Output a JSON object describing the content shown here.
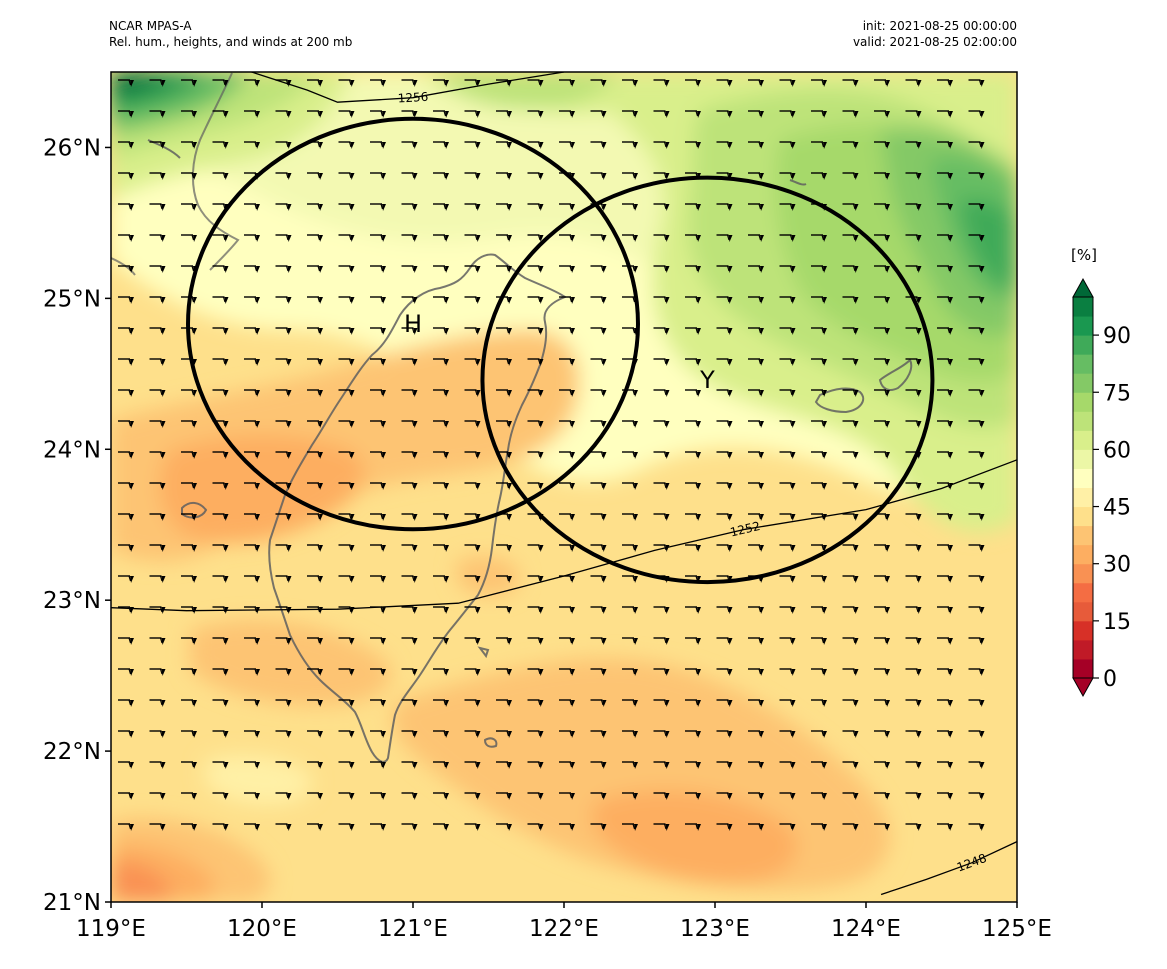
{
  "header": {
    "model": "NCAR MPAS-A",
    "description": "Rel. hum., heights, and winds at 200 mb",
    "init": "init: 2021-08-25 00:00:00",
    "valid": "valid: 2021-08-25 02:00:00"
  },
  "map": {
    "lon_range": [
      119,
      125
    ],
    "lat_range": [
      21,
      26.5
    ],
    "x_ticks": [
      "119°E",
      "120°E",
      "121°E",
      "122°E",
      "123°E",
      "124°E",
      "125°E"
    ],
    "y_ticks": [
      "21°N",
      "22°N",
      "23°N",
      "24°N",
      "25°N",
      "26°N"
    ],
    "height_contours": [
      {
        "label": "1256",
        "points": [
          [
            119.9,
            26.51
          ],
          [
            120.3,
            26.38
          ],
          [
            120.5,
            26.3
          ],
          [
            121.0,
            26.33
          ],
          [
            121.5,
            26.42
          ],
          [
            122.0,
            26.5
          ]
        ]
      },
      {
        "label": "1252",
        "points": [
          [
            119.0,
            22.95
          ],
          [
            119.5,
            22.93
          ],
          [
            120.5,
            22.94
          ],
          [
            121.3,
            22.98
          ],
          [
            122.0,
            23.16
          ],
          [
            122.6,
            23.33
          ],
          [
            123.2,
            23.47
          ],
          [
            124.0,
            23.6
          ],
          [
            124.5,
            23.74
          ],
          [
            125.0,
            23.93
          ]
        ]
      },
      {
        "label": "1248",
        "points": [
          [
            124.1,
            21.05
          ],
          [
            124.4,
            21.15
          ],
          [
            124.7,
            21.26
          ],
          [
            125.0,
            21.4
          ]
        ]
      }
    ],
    "circles": [
      {
        "label": "H",
        "center": [
          121.0,
          24.83
        ],
        "lon_radius": 1.49,
        "lat_radius": 1.36
      },
      {
        "label": "Y",
        "center": [
          122.95,
          24.46
        ],
        "lon_radius": 1.49,
        "lat_radius": 1.34
      }
    ],
    "wind_barbs": "westerly flag barbs on a regular grid",
    "coastline_color": "#5f5f5f"
  },
  "colorbar": {
    "unit": "[%]",
    "ticks": [
      "0",
      "15",
      "30",
      "45",
      "60",
      "75",
      "90"
    ],
    "levels": [
      0,
      5,
      10,
      15,
      20,
      25,
      30,
      35,
      40,
      45,
      50,
      55,
      60,
      65,
      70,
      75,
      80,
      85,
      90,
      95,
      100
    ],
    "colors": [
      "#a50026",
      "#c01a27",
      "#d73027",
      "#e75b3a",
      "#f46d43",
      "#f99153",
      "#fdae61",
      "#fdc473",
      "#fee08b",
      "#fff0a6",
      "#ffffbf",
      "#ecf7a6",
      "#d9ef8b",
      "#bde379",
      "#a6d96a",
      "#84c966",
      "#66bd63",
      "#3faa59",
      "#1a9850",
      "#0a7f41",
      "#006837"
    ]
  }
}
